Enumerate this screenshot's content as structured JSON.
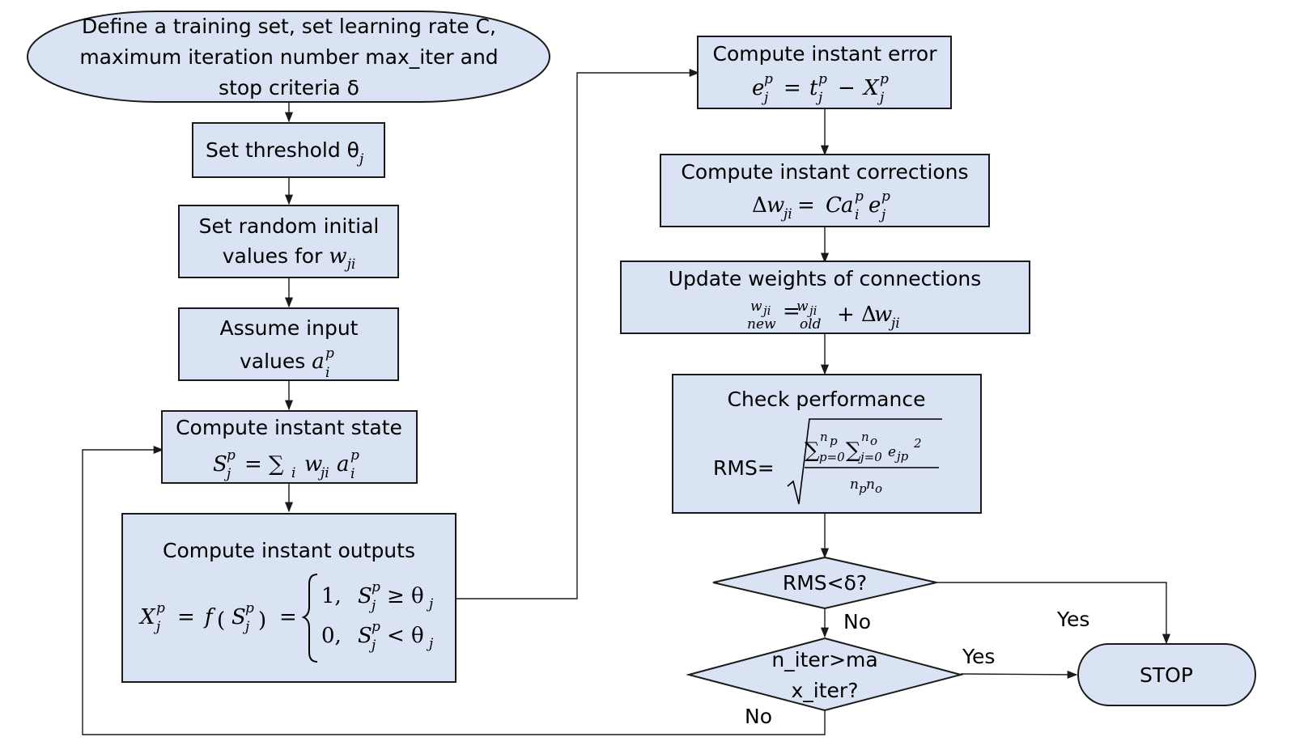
{
  "start": {
    "line1": "Define a training set, set learning rate C,",
    "line2": "maximum iteration number max_iter and",
    "line3": "stop criteria δ"
  },
  "threshold": {
    "label": "Set threshold θ",
    "sub": "j"
  },
  "init_weights": {
    "line1": "Set random initial",
    "line2": "values for ",
    "var": "w",
    "sub": "ji"
  },
  "input": {
    "line1": "Assume input",
    "line2": "values ",
    "var": "a",
    "sup": "p",
    "sub": "i"
  },
  "state": {
    "title": "Compute instant state"
  },
  "outputs": {
    "title": "Compute instant outputs",
    "case1_value": "1,",
    "case0_value": "0,"
  },
  "error": {
    "title": "Compute instant error"
  },
  "corrections": {
    "title": "Compute instant corrections"
  },
  "update": {
    "title": "Update weights of connections",
    "new": "new",
    "old": "old"
  },
  "performance": {
    "title": "Check performance",
    "rms_label": "RMS="
  },
  "decision_rms": {
    "label": "RMS<δ?"
  },
  "decision_iter": {
    "line1": "n_iter>ma",
    "line2": "x_iter?"
  },
  "stop": {
    "label": "STOP"
  },
  "edges": {
    "yes_1": "Yes",
    "no_1": "No",
    "yes_2": "Yes",
    "no_2": "No"
  },
  "colors": {
    "node_fill": "#dae3f3",
    "stroke": "#1a1a1a"
  }
}
